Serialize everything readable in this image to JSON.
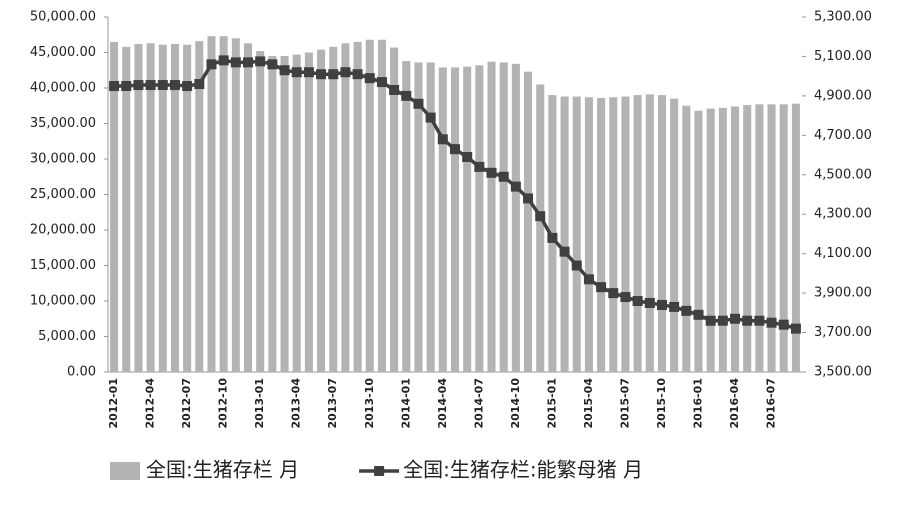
{
  "chart_data": {
    "type": "bar",
    "categories": [
      "2012-01",
      null,
      null,
      "2012-04",
      null,
      null,
      "2012-07",
      null,
      null,
      "2012-10",
      null,
      null,
      "2013-01",
      null,
      null,
      "2013-04",
      null,
      null,
      "2013-07",
      null,
      null,
      "2013-10",
      null,
      null,
      "2014-01",
      null,
      null,
      "2014-04",
      null,
      null,
      "2014-07",
      null,
      null,
      "2014-10",
      null,
      null,
      "2015-01",
      null,
      null,
      "2015-04",
      null,
      null,
      "2015-07",
      null,
      null,
      "2015-10",
      null,
      null,
      "2016-01",
      null,
      null,
      "2016-04",
      null,
      null,
      "2016-07",
      null,
      null
    ],
    "series": [
      {
        "name": "全国:生猪存栏 月",
        "type": "bar",
        "color": "#b3b3b3",
        "values": [
          46500,
          45800,
          46200,
          46300,
          46100,
          46200,
          46100,
          46600,
          47300,
          47300,
          47000,
          46300,
          45200,
          44500,
          44500,
          44700,
          45000,
          45400,
          45800,
          46300,
          46500,
          46800,
          46800,
          45700,
          43800,
          43600,
          43600,
          42900,
          42900,
          43000,
          43200,
          43700,
          43600,
          43400,
          42300,
          40500,
          39000,
          38800,
          38800,
          38700,
          38600,
          38700,
          38800,
          39000,
          39100,
          39000,
          38500,
          37500,
          36800,
          37100,
          37200,
          37400,
          37600,
          37700,
          37700,
          37700,
          37800
        ]
      },
      {
        "name": "全国:生猪存栏:能繁母猪 月",
        "type": "line",
        "axis": "y2",
        "color": "#404040",
        "values": [
          4950,
          4950,
          4955,
          4955,
          4955,
          4955,
          4950,
          4960,
          5060,
          5080,
          5070,
          5070,
          5075,
          5060,
          5030,
          5020,
          5020,
          5010,
          5010,
          5020,
          5010,
          4990,
          4970,
          4930,
          4900,
          4860,
          4790,
          4680,
          4630,
          4590,
          4540,
          4510,
          4490,
          4440,
          4380,
          4290,
          4180,
          4110,
          4040,
          3970,
          3930,
          3900,
          3880,
          3860,
          3850,
          3840,
          3830,
          3810,
          3790,
          3760,
          3760,
          3770,
          3760,
          3760,
          3750,
          3740,
          3720
        ]
      }
    ],
    "ylim": [
      0,
      50000
    ],
    "yticks": [
      {
        "value": 0,
        "label": "0.00"
      },
      {
        "value": 5000,
        "label": "5,000.00"
      },
      {
        "value": 10000,
        "label": "10,000.00"
      },
      {
        "value": 15000,
        "label": "15,000.00"
      },
      {
        "value": 20000,
        "label": "20,000.00"
      },
      {
        "value": 25000,
        "label": "25,000.00"
      },
      {
        "value": 30000,
        "label": "30,000.00"
      },
      {
        "value": 35000,
        "label": "35,000.00"
      },
      {
        "value": 40000,
        "label": "40,000.00"
      },
      {
        "value": 45000,
        "label": "45,000.00"
      },
      {
        "value": 50000,
        "label": "50,000.00"
      }
    ],
    "y2lim": [
      3500,
      5300
    ],
    "y2ticks": [
      {
        "value": 3500,
        "label": "3,500.00"
      },
      {
        "value": 3700,
        "label": "3,700.00"
      },
      {
        "value": 3900,
        "label": "3,900.00"
      },
      {
        "value": 4100,
        "label": "4,100.00"
      },
      {
        "value": 4300,
        "label": "4,300.00"
      },
      {
        "value": 4500,
        "label": "4,500.00"
      },
      {
        "value": 4700,
        "label": "4,700.00"
      },
      {
        "value": 4900,
        "label": "4,900.00"
      },
      {
        "value": 5100,
        "label": "5,100.00"
      },
      {
        "value": 5300,
        "label": "5,300.00"
      }
    ],
    "legend": "bottom"
  }
}
